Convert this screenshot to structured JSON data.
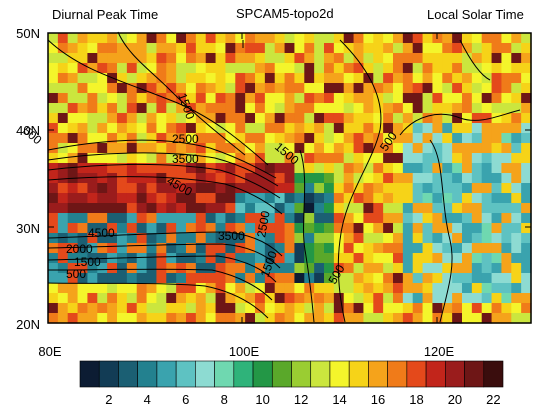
{
  "figure": {
    "left_title": "Diurnal Peak Time",
    "center_title": "SPCAM5-topo2d",
    "right_title": "Local Solar Time"
  },
  "map": {
    "lon_range": [
      80,
      130
    ],
    "lat_range": [
      20,
      50
    ],
    "lat_ticks": [
      "50N",
      "40N",
      "30N",
      "20N"
    ],
    "lon_ticks": [
      "80E",
      "100E",
      "120E"
    ],
    "contour_labels": [
      "1500",
      "500",
      "2500",
      "3500",
      "4500",
      "1500",
      "500",
      "4500",
      "2000",
      "1500",
      "500",
      "3500",
      "2500",
      "1500",
      "500"
    ]
  },
  "colorbar": {
    "ticks": [
      "2",
      "4",
      "6",
      "8",
      "10",
      "12",
      "14",
      "16",
      "18",
      "20",
      "22"
    ],
    "colors": [
      "#0c1c33",
      "#123c55",
      "#1b5f73",
      "#23818f",
      "#3aa3ae",
      "#5ec2c2",
      "#8ddbd2",
      "#6fd8b0",
      "#2fb37a",
      "#239746",
      "#5aa82a",
      "#9acd32",
      "#cbe63e",
      "#f4f52b",
      "#f6d318",
      "#f5a31b",
      "#f07b19",
      "#e4491b",
      "#c2251b",
      "#9a1c1c",
      "#6e1616",
      "#3a0d0d"
    ]
  }
}
